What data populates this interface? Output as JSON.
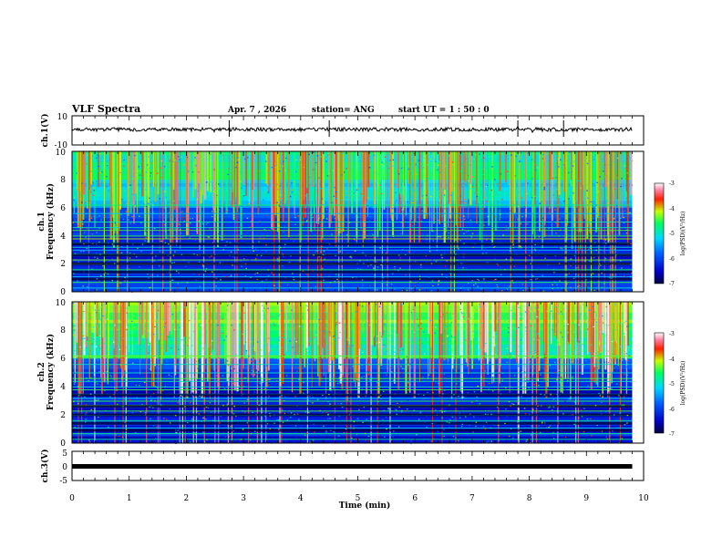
{
  "header": {
    "title": "VLF Spectra",
    "date": "Apr. 7 , 2026",
    "station": "station= ANG",
    "start_ut": "start UT = 1 : 50 : 0"
  },
  "chart_data": [
    {
      "type": "line",
      "name": "ch1-waveform",
      "ylabel": "ch.1(V)",
      "yticks": [
        "10",
        "-10"
      ],
      "ylim": [
        -10,
        10
      ],
      "xlim": [
        0,
        10
      ],
      "trace_level": 0,
      "trace_end": 9.8
    },
    {
      "type": "heatmap",
      "name": "ch1-spectrogram",
      "ylabel_line1": "ch.1",
      "ylabel_line2": "Frequency (kHz)",
      "ylim": [
        0,
        10
      ],
      "yticks": [
        "0",
        "2",
        "4",
        "6",
        "8",
        "10"
      ],
      "xlim": [
        0,
        10
      ],
      "data_end": 9.8,
      "colorbar": {
        "label": "log(PSD)(V²/Hz)",
        "min": -7,
        "max": -3,
        "ticks": [
          "-3",
          "-4",
          "-5",
          "-6",
          "-7"
        ]
      }
    },
    {
      "type": "heatmap",
      "name": "ch2-spectrogram",
      "ylabel_line1": "ch.2",
      "ylabel_line2": "Frequency (kHz)",
      "ylim": [
        0,
        10
      ],
      "yticks": [
        "0",
        "2",
        "4",
        "6",
        "8",
        "10"
      ],
      "xlim": [
        0,
        10
      ],
      "data_end": 9.8,
      "colorbar": {
        "label": "log(PSD)(V²/Hz)",
        "min": -7,
        "max": -3,
        "ticks": [
          "-3",
          "-4",
          "-5",
          "-6",
          "-7"
        ]
      }
    },
    {
      "type": "line",
      "name": "ch3-waveform",
      "ylabel": "ch.3(V)",
      "yticks": [
        "5",
        "0",
        "-5"
      ],
      "ylim": [
        -5,
        5
      ],
      "xlim": [
        0,
        10
      ],
      "trace_level": 0,
      "trace_end": 9.8
    }
  ],
  "x_axis": {
    "label": "Time (min)",
    "ticks": [
      "0",
      "1",
      "2",
      "3",
      "4",
      "5",
      "6",
      "7",
      "8",
      "9",
      "10"
    ]
  }
}
